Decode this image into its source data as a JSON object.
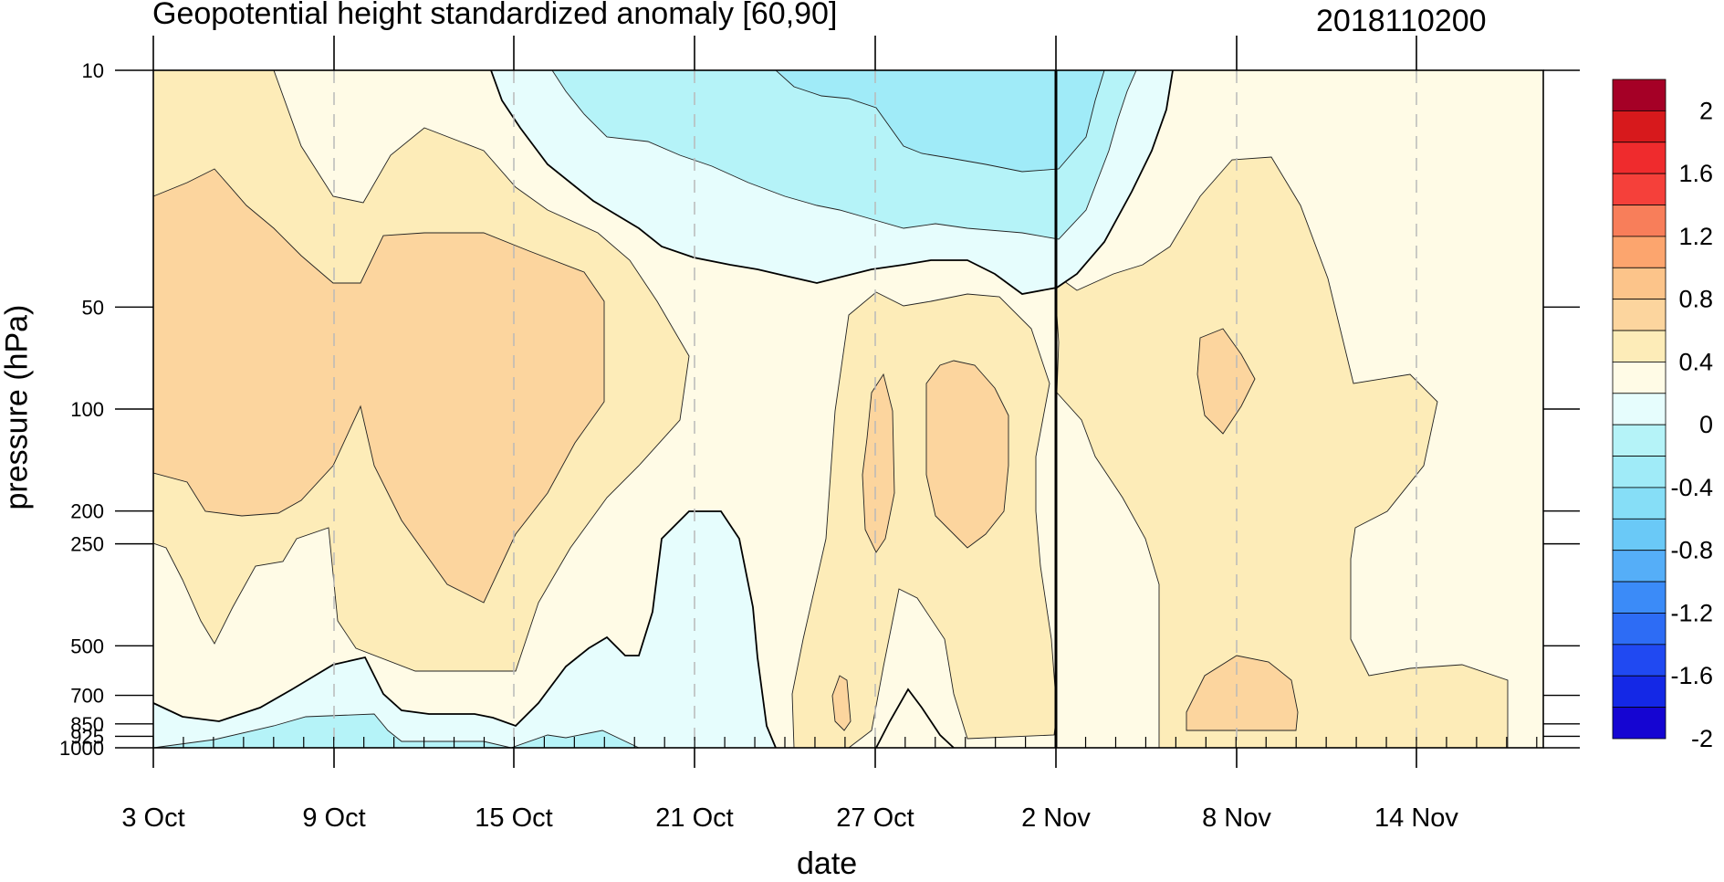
{
  "chart_data": {
    "type": "heatmap",
    "title": "Geopotential height standardized anomaly [60,90]",
    "stamp": "2018110200",
    "xlabel": "date",
    "ylabel": "pressure (hPa)",
    "x_ticks": [
      "3 Oct",
      "9 Oct",
      "15 Oct",
      "21 Oct",
      "27 Oct",
      "2 Nov",
      "8 Nov",
      "14 Nov"
    ],
    "y_ticks": [
      "10",
      "50",
      "100",
      "200",
      "250",
      "500",
      "700",
      "850",
      "925",
      "1000"
    ],
    "y_scale": "log",
    "y_reversed": true,
    "reference_line": "2 Nov",
    "colorbar": {
      "labels": [
        "2",
        "1.6",
        "1.2",
        "0.8",
        "0.4",
        "0",
        "-0.4",
        "-0.8",
        "-1.2",
        "-1.6",
        "-2"
      ],
      "colors": [
        "#a50026",
        "#d7191c",
        "#ef2b2d",
        "#f5403a",
        "#f87e5a",
        "#fca56e",
        "#fcc48a",
        "#fcd59e",
        "#fdecb8",
        "#fffbe6",
        "#e6fdfd",
        "#b5f3f8",
        "#a0ebf8",
        "#86def7",
        "#6ac9f7",
        "#55aef8",
        "#3b8bf8",
        "#2d6cf5",
        "#2049f2",
        "#1428e6",
        "#1505d2"
      ]
    },
    "fill_colors": {
      "pos_0_0.2": "#fffbe6",
      "pos_0.2_0.4": "#fdecb8",
      "pos_0.4_0.6": "#fcd59e",
      "neg_0_-0.2": "#e6fdfd",
      "neg_-0.2_-0.4": "#b5f3f8",
      "neg_-0.4_-0.6": "#a0ebf8"
    }
  }
}
